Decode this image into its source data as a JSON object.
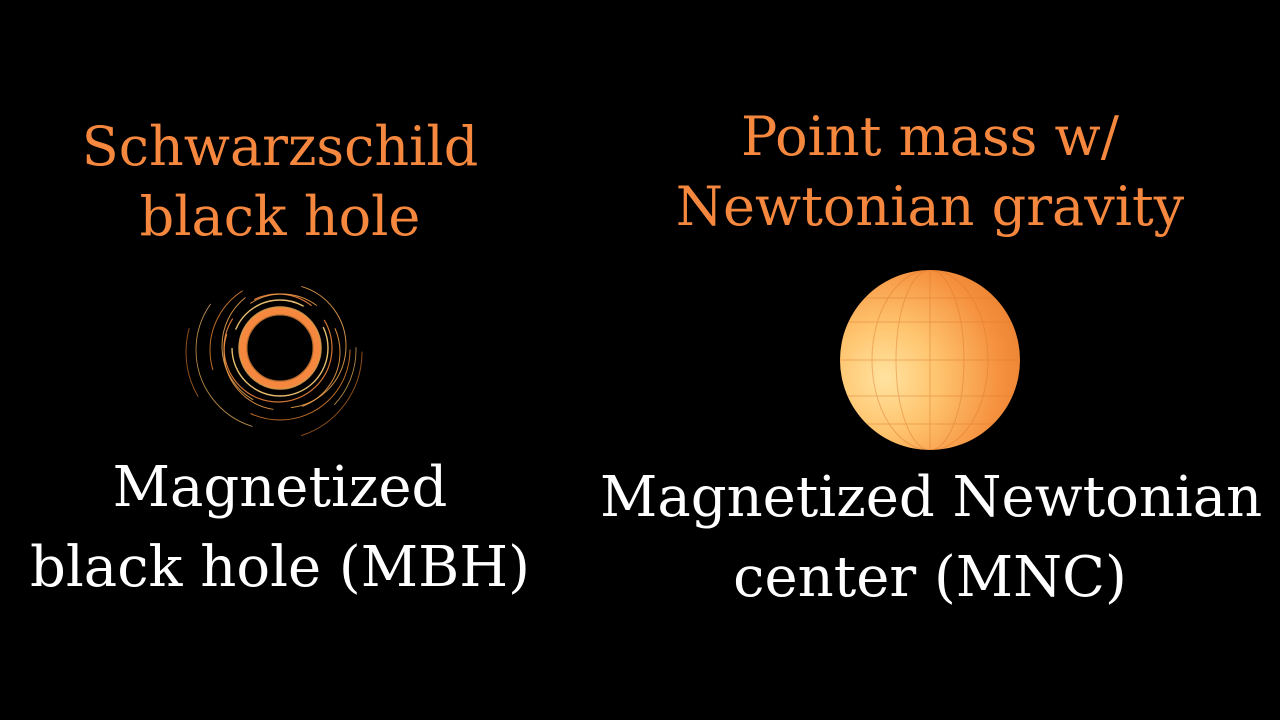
{
  "colors": {
    "background": "#000000",
    "accent": "#F5883E",
    "caption": "#FFFFFF",
    "sphere_light": "#FFD98A",
    "sphere_dark": "#F28A35"
  },
  "left": {
    "title_lines": [
      "Schwarzschild",
      "black hole"
    ],
    "caption_lines": [
      "Magnetized",
      "black hole (MBH)"
    ],
    "illustration_icon": "black-hole-ring-icon"
  },
  "right": {
    "title_lines": [
      "Point mass w/",
      "Newtonian gravity"
    ],
    "caption_lines": [
      "Magnetized Newtonian",
      "center (MNC)"
    ],
    "illustration_icon": "orange-sphere-icon"
  }
}
